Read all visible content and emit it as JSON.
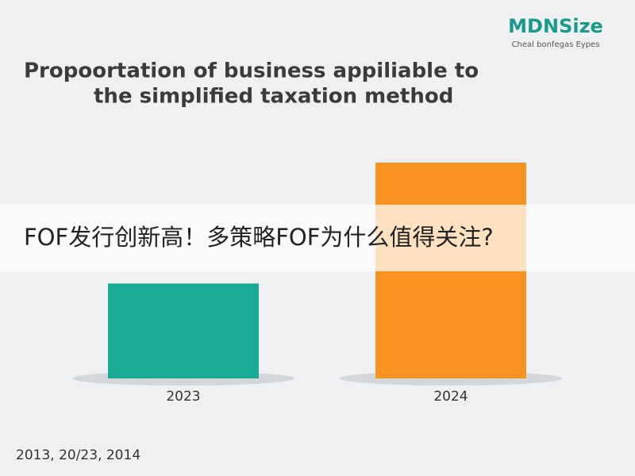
{
  "logo": {
    "name": "MDNSize",
    "tagline": "Cheal bonfegas Eypes"
  },
  "chart_data": {
    "type": "bar",
    "title": [
      "Propoortation of business appiliable to",
      "the simplified taxation method"
    ],
    "categories": [
      "2023",
      "2024"
    ],
    "values": [
      22,
      50
    ],
    "colors": [
      "#1aab96",
      "#f7931e"
    ],
    "footnote": "2013, 20/23, 2014"
  },
  "overlay_caption": "FOF发行创新高！多策略FOF为什么值得关注?"
}
